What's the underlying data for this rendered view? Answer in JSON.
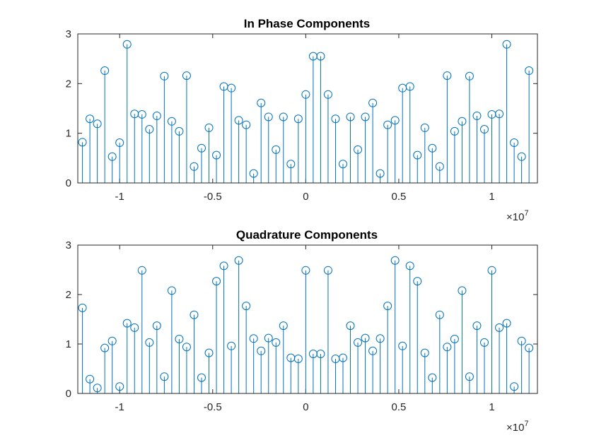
{
  "chart_data": [
    {
      "type": "stem",
      "title": "In Phase Components",
      "xlabel": "",
      "ylabel": "",
      "x_exponent_label": "×10",
      "x_exponent_power": "7",
      "xlim": [
        -1.225,
        1.245
      ],
      "ylim": [
        0,
        3
      ],
      "xticks": [
        -1,
        -0.5,
        0,
        0.5,
        1
      ],
      "xtick_labels": [
        "-1",
        "-0.5",
        "0",
        "0.5",
        "1"
      ],
      "yticks": [
        0,
        1,
        2,
        3
      ],
      "ytick_labels": [
        "0",
        "1",
        "2",
        "3"
      ],
      "color": "#0072BD",
      "x": [
        -1.2,
        -1.16,
        -1.12,
        -1.08,
        -1.04,
        -1.0,
        -0.96,
        -0.92,
        -0.88,
        -0.84,
        -0.8,
        -0.76,
        -0.72,
        -0.68,
        -0.64,
        -0.6,
        -0.56,
        -0.52,
        -0.48,
        -0.44,
        -0.4,
        -0.36,
        -0.32,
        -0.28,
        -0.24,
        -0.2,
        -0.16,
        -0.12,
        -0.08,
        -0.04,
        0.0,
        0.04,
        0.08,
        0.12,
        0.16,
        0.2,
        0.24,
        0.28,
        0.32,
        0.36,
        0.4,
        0.44,
        0.48,
        0.52,
        0.56,
        0.6,
        0.64,
        0.68,
        0.72,
        0.76,
        0.8,
        0.84,
        0.88,
        0.92,
        0.96,
        1.0,
        1.04,
        1.08,
        1.12,
        1.16,
        1.2
      ],
      "y": [
        0.82,
        1.29,
        1.19,
        2.26,
        0.53,
        0.81,
        2.79,
        1.39,
        1.38,
        1.08,
        1.35,
        2.15,
        1.24,
        1.04,
        2.16,
        0.33,
        0.7,
        1.11,
        0.56,
        1.94,
        1.91,
        1.26,
        1.17,
        0.19,
        1.61,
        1.33,
        0.67,
        1.33,
        0.38,
        1.29,
        1.78,
        2.55,
        2.55,
        1.78,
        1.29,
        0.38,
        1.33,
        0.67,
        1.33,
        1.61,
        0.19,
        1.17,
        1.26,
        1.91,
        1.94,
        0.56,
        1.11,
        0.7,
        0.33,
        2.16,
        1.04,
        1.24,
        2.15,
        1.35,
        1.08,
        1.38,
        1.39,
        2.79,
        0.81,
        0.53,
        2.26
      ]
    },
    {
      "type": "stem",
      "title": "Quadrature Components",
      "xlabel": "",
      "ylabel": "",
      "x_exponent_label": "×10",
      "x_exponent_power": "7",
      "xlim": [
        -1.225,
        1.245
      ],
      "ylim": [
        0,
        3
      ],
      "xticks": [
        -1,
        -0.5,
        0,
        0.5,
        1
      ],
      "xtick_labels": [
        "-1",
        "-0.5",
        "0",
        "0.5",
        "1"
      ],
      "yticks": [
        0,
        1,
        2,
        3
      ],
      "ytick_labels": [
        "0",
        "1",
        "2",
        "3"
      ],
      "color": "#0072BD",
      "x": [
        -1.2,
        -1.16,
        -1.12,
        -1.08,
        -1.04,
        -1.0,
        -0.96,
        -0.92,
        -0.88,
        -0.84,
        -0.8,
        -0.76,
        -0.72,
        -0.68,
        -0.64,
        -0.6,
        -0.56,
        -0.52,
        -0.48,
        -0.44,
        -0.4,
        -0.36,
        -0.32,
        -0.28,
        -0.24,
        -0.2,
        -0.16,
        -0.12,
        -0.08,
        -0.04,
        0.0,
        0.04,
        0.08,
        0.12,
        0.16,
        0.2,
        0.24,
        0.28,
        0.32,
        0.36,
        0.4,
        0.44,
        0.48,
        0.52,
        0.56,
        0.6,
        0.64,
        0.68,
        0.72,
        0.76,
        0.8,
        0.84,
        0.88,
        0.92,
        0.96,
        1.0,
        1.04,
        1.08,
        1.12,
        1.16,
        1.2
      ],
      "y": [
        1.73,
        0.29,
        0.11,
        0.92,
        1.06,
        0.14,
        1.42,
        1.33,
        2.49,
        1.03,
        1.37,
        0.34,
        2.08,
        1.1,
        0.94,
        1.59,
        0.32,
        0.82,
        2.27,
        2.58,
        0.96,
        2.69,
        1.77,
        1.11,
        0.86,
        1.12,
        1.03,
        1.37,
        0.72,
        0.7,
        2.49,
        0.8,
        0.8,
        2.49,
        0.7,
        0.72,
        1.37,
        1.03,
        1.12,
        0.86,
        1.11,
        1.77,
        2.69,
        0.96,
        2.58,
        2.27,
        0.82,
        0.32,
        1.59,
        0.94,
        1.1,
        2.08,
        0.34,
        1.37,
        1.03,
        2.49,
        1.33,
        1.42,
        0.14,
        1.06,
        0.92
      ]
    }
  ]
}
